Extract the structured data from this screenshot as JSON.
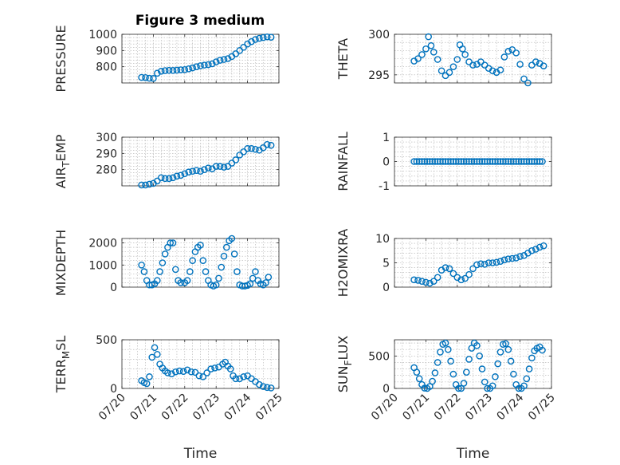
{
  "figure_title": "Figure 3 medium",
  "colors": {
    "marker": "#0072BD",
    "axes": "#262626",
    "grid": "#b0b0b0",
    "background": "#ffffff"
  },
  "x_axis": {
    "label": "Time",
    "range": [
      "07/20",
      "07/25"
    ],
    "tick_labels": [
      "07/20",
      "07/21",
      "07/22",
      "07/23",
      "07/24",
      "07/25"
    ]
  },
  "chart_data": [
    {
      "type": "scatter",
      "ylabel": "PRESSURE",
      "ylim": [
        700,
        1000
      ],
      "yticks": [
        800,
        900,
        1000
      ],
      "ytick_labels": [
        "800",
        "900",
        "1000"
      ],
      "grid": true,
      "marker": "open-circle",
      "points": [
        [
          "07/20 15:00",
          734
        ],
        [
          "07/20 18:00",
          733
        ],
        [
          "07/20 21:00",
          729
        ],
        [
          "07/21 00:00",
          728
        ],
        [
          "07/21 03:00",
          760
        ],
        [
          "07/21 06:00",
          772
        ],
        [
          "07/21 09:00",
          776
        ],
        [
          "07/21 12:00",
          778
        ],
        [
          "07/21 15:00",
          777
        ],
        [
          "07/21 18:00",
          779
        ],
        [
          "07/21 21:00",
          781
        ],
        [
          "07/22 00:00",
          782
        ],
        [
          "07/22 03:00",
          787
        ],
        [
          "07/22 06:00",
          793
        ],
        [
          "07/22 09:00",
          800
        ],
        [
          "07/22 12:00",
          806
        ],
        [
          "07/22 15:00",
          810
        ],
        [
          "07/22 18:00",
          813
        ],
        [
          "07/22 21:00",
          818
        ],
        [
          "07/23 00:00",
          830
        ],
        [
          "07/23 03:00",
          840
        ],
        [
          "07/23 06:00",
          845
        ],
        [
          "07/23 09:00",
          850
        ],
        [
          "07/23 12:00",
          863
        ],
        [
          "07/23 15:00",
          880
        ],
        [
          "07/23 18:00",
          900
        ],
        [
          "07/23 21:00",
          920
        ],
        [
          "07/24 00:00",
          940
        ],
        [
          "07/24 03:00",
          955
        ],
        [
          "07/24 06:00",
          968
        ],
        [
          "07/24 09:00",
          975
        ],
        [
          "07/24 12:00",
          980
        ],
        [
          "07/24 15:00",
          984
        ],
        [
          "07/24 18:00",
          982
        ]
      ]
    },
    {
      "type": "scatter",
      "ylabel": "THETA",
      "ylim": [
        294,
        300
      ],
      "yticks": [
        295,
        300
      ],
      "ytick_labels": [
        "295",
        "300"
      ],
      "grid": true,
      "marker": "open-circle",
      "points": [
        [
          "07/20 15:00",
          296.7
        ],
        [
          "07/20 18:00",
          297.0
        ],
        [
          "07/20 21:00",
          297.5
        ],
        [
          "07/21 00:00",
          298.2
        ],
        [
          "07/21 02:00",
          299.7
        ],
        [
          "07/21 04:00",
          298.6
        ],
        [
          "07/21 06:00",
          297.8
        ],
        [
          "07/21 09:00",
          296.9
        ],
        [
          "07/21 12:00",
          295.5
        ],
        [
          "07/21 15:00",
          294.9
        ],
        [
          "07/21 18:00",
          295.3
        ],
        [
          "07/21 21:00",
          296.0
        ],
        [
          "07/22 00:00",
          296.9
        ],
        [
          "07/22 02:00",
          298.7
        ],
        [
          "07/22 04:00",
          298.2
        ],
        [
          "07/22 06:00",
          297.5
        ],
        [
          "07/22 09:00",
          296.6
        ],
        [
          "07/22 12:00",
          296.2
        ],
        [
          "07/22 15:00",
          296.3
        ],
        [
          "07/22 18:00",
          296.6
        ],
        [
          "07/22 21:00",
          296.2
        ],
        [
          "07/23 00:00",
          295.8
        ],
        [
          "07/23 03:00",
          295.5
        ],
        [
          "07/23 06:00",
          295.3
        ],
        [
          "07/23 09:00",
          295.6
        ],
        [
          "07/23 12:00",
          297.2
        ],
        [
          "07/23 15:00",
          297.9
        ],
        [
          "07/23 18:00",
          298.1
        ],
        [
          "07/23 21:00",
          297.7
        ],
        [
          "07/24 00:00",
          296.3
        ],
        [
          "07/24 03:00",
          294.5
        ],
        [
          "07/24 06:00",
          294.0
        ],
        [
          "07/24 09:00",
          296.2
        ],
        [
          "07/24 12:00",
          296.6
        ],
        [
          "07/24 15:00",
          296.4
        ],
        [
          "07/24 18:00",
          296.1
        ]
      ]
    },
    {
      "type": "scatter",
      "ylabel": "AIR_TEMP",
      "ylim": [
        270,
        300
      ],
      "yticks": [
        280,
        290,
        300
      ],
      "ytick_labels": [
        "280",
        "290",
        "300"
      ],
      "grid": true,
      "marker": "open-circle",
      "points": [
        [
          "07/20 15:00",
          270.5
        ],
        [
          "07/20 18:00",
          270.5
        ],
        [
          "07/20 21:00",
          271
        ],
        [
          "07/21 00:00",
          271.5
        ],
        [
          "07/21 03:00",
          273
        ],
        [
          "07/21 06:00",
          275
        ],
        [
          "07/21 09:00",
          274.5
        ],
        [
          "07/21 12:00",
          274.5
        ],
        [
          "07/21 15:00",
          275
        ],
        [
          "07/21 18:00",
          276
        ],
        [
          "07/21 21:00",
          276.5
        ],
        [
          "07/22 00:00",
          277.5
        ],
        [
          "07/22 03:00",
          278.5
        ],
        [
          "07/22 06:00",
          279
        ],
        [
          "07/22 09:00",
          279.5
        ],
        [
          "07/22 12:00",
          279
        ],
        [
          "07/22 15:00",
          280
        ],
        [
          "07/22 18:00",
          281
        ],
        [
          "07/22 21:00",
          280.5
        ],
        [
          "07/23 00:00",
          282
        ],
        [
          "07/23 03:00",
          282
        ],
        [
          "07/23 06:00",
          281.5
        ],
        [
          "07/23 09:00",
          282
        ],
        [
          "07/23 12:00",
          284
        ],
        [
          "07/23 15:00",
          286
        ],
        [
          "07/23 18:00",
          289
        ],
        [
          "07/23 21:00",
          291
        ],
        [
          "07/24 00:00",
          293
        ],
        [
          "07/24 03:00",
          293
        ],
        [
          "07/24 06:00",
          292.5
        ],
        [
          "07/24 09:00",
          292
        ],
        [
          "07/24 12:00",
          293.5
        ],
        [
          "07/24 15:00",
          295.5
        ],
        [
          "07/24 18:00",
          295
        ]
      ]
    },
    {
      "type": "scatter",
      "ylabel": "RAINFALL",
      "ylim": [
        -1,
        1
      ],
      "yticks": [
        -1,
        0,
        1
      ],
      "ytick_labels": [
        "-1",
        "0",
        "1"
      ],
      "grid": true,
      "marker": "open-circle",
      "constant_series": {
        "start": "07/20 15:00",
        "end": "07/24 18:00",
        "step_hours": 2,
        "value": 0
      }
    },
    {
      "type": "scatter",
      "ylabel": "MIXDEPTH",
      "ylim": [
        0,
        2200
      ],
      "yticks": [
        0,
        1000,
        2000
      ],
      "ytick_labels": [
        "0",
        "1000",
        "2000"
      ],
      "grid": true,
      "marker": "open-circle",
      "points": [
        [
          "07/20 15:00",
          1000
        ],
        [
          "07/20 17:00",
          700
        ],
        [
          "07/20 19:00",
          300
        ],
        [
          "07/20 21:00",
          100
        ],
        [
          "07/20 23:00",
          100
        ],
        [
          "07/21 01:00",
          150
        ],
        [
          "07/21 03:00",
          300
        ],
        [
          "07/21 05:00",
          700
        ],
        [
          "07/21 07:00",
          1100
        ],
        [
          "07/21 09:00",
          1500
        ],
        [
          "07/21 11:00",
          1800
        ],
        [
          "07/21 13:00",
          2000
        ],
        [
          "07/21 15:00",
          2000
        ],
        [
          "07/21 17:00",
          800
        ],
        [
          "07/21 19:00",
          300
        ],
        [
          "07/21 21:00",
          200
        ],
        [
          "07/22 00:00",
          200
        ],
        [
          "07/22 02:00",
          300
        ],
        [
          "07/22 04:00",
          700
        ],
        [
          "07/22 06:00",
          1200
        ],
        [
          "07/22 08:00",
          1600
        ],
        [
          "07/22 10:00",
          1800
        ],
        [
          "07/22 12:00",
          1900
        ],
        [
          "07/22 14:00",
          1200
        ],
        [
          "07/22 16:00",
          700
        ],
        [
          "07/22 18:00",
          300
        ],
        [
          "07/22 20:00",
          100
        ],
        [
          "07/22 22:00",
          50
        ],
        [
          "07/23 00:00",
          100
        ],
        [
          "07/23 02:00",
          400
        ],
        [
          "07/23 04:00",
          900
        ],
        [
          "07/23 06:00",
          1400
        ],
        [
          "07/23 08:00",
          1800
        ],
        [
          "07/23 10:00",
          2100
        ],
        [
          "07/23 12:00",
          2200
        ],
        [
          "07/23 14:00",
          1500
        ],
        [
          "07/23 16:00",
          700
        ],
        [
          "07/23 18:00",
          100
        ],
        [
          "07/23 20:00",
          50
        ],
        [
          "07/23 22:00",
          50
        ],
        [
          "07/24 00:00",
          80
        ],
        [
          "07/24 02:00",
          150
        ],
        [
          "07/24 04:00",
          400
        ],
        [
          "07/24 06:00",
          700
        ],
        [
          "07/24 08:00",
          300
        ],
        [
          "07/24 10:00",
          150
        ],
        [
          "07/24 12:00",
          100
        ],
        [
          "07/24 14:00",
          200
        ],
        [
          "07/24 16:00",
          450
        ]
      ]
    },
    {
      "type": "scatter",
      "ylabel": "H2OMIXRA",
      "ylim": [
        0,
        10
      ],
      "yticks": [
        0,
        5,
        10
      ],
      "ytick_labels": [
        "0",
        "5",
        "10"
      ],
      "grid": true,
      "marker": "open-circle",
      "points": [
        [
          "07/20 15:00",
          1.5
        ],
        [
          "07/20 18:00",
          1.4
        ],
        [
          "07/20 21:00",
          1.2
        ],
        [
          "07/21 00:00",
          1.0
        ],
        [
          "07/21 03:00",
          0.8
        ],
        [
          "07/21 06:00",
          1.2
        ],
        [
          "07/21 09:00",
          2.0
        ],
        [
          "07/21 12:00",
          3.5
        ],
        [
          "07/21 15:00",
          4.0
        ],
        [
          "07/21 18:00",
          3.8
        ],
        [
          "07/21 21:00",
          2.8
        ],
        [
          "07/22 00:00",
          2.0
        ],
        [
          "07/22 03:00",
          1.5
        ],
        [
          "07/22 06:00",
          1.8
        ],
        [
          "07/22 09:00",
          2.6
        ],
        [
          "07/22 12:00",
          3.8
        ],
        [
          "07/22 15:00",
          4.6
        ],
        [
          "07/22 18:00",
          4.8
        ],
        [
          "07/22 21:00",
          4.7
        ],
        [
          "07/23 00:00",
          5.0
        ],
        [
          "07/23 03:00",
          5.0
        ],
        [
          "07/23 06:00",
          5.1
        ],
        [
          "07/23 09:00",
          5.3
        ],
        [
          "07/23 12:00",
          5.6
        ],
        [
          "07/23 15:00",
          5.8
        ],
        [
          "07/23 18:00",
          5.9
        ],
        [
          "07/23 21:00",
          6.0
        ],
        [
          "07/24 00:00",
          6.3
        ],
        [
          "07/24 03:00",
          6.5
        ],
        [
          "07/24 06:00",
          7.0
        ],
        [
          "07/24 09:00",
          7.5
        ],
        [
          "07/24 12:00",
          7.8
        ],
        [
          "07/24 15:00",
          8.2
        ],
        [
          "07/24 18:00",
          8.5
        ]
      ]
    },
    {
      "type": "scatter",
      "ylabel": "TERR_MSL",
      "ylim": [
        0,
        500
      ],
      "yticks": [
        0,
        500
      ],
      "ytick_labels": [
        "0",
        "500"
      ],
      "grid": true,
      "marker": "open-circle",
      "points": [
        [
          "07/20 15:00",
          80
        ],
        [
          "07/20 17:00",
          60
        ],
        [
          "07/20 19:00",
          50
        ],
        [
          "07/20 21:00",
          120
        ],
        [
          "07/20 23:00",
          320
        ],
        [
          "07/21 01:00",
          420
        ],
        [
          "07/21 03:00",
          350
        ],
        [
          "07/21 05:00",
          250
        ],
        [
          "07/21 07:00",
          210
        ],
        [
          "07/21 09:00",
          180
        ],
        [
          "07/21 11:00",
          160
        ],
        [
          "07/21 14:00",
          150
        ],
        [
          "07/21 17:00",
          170
        ],
        [
          "07/21 20:00",
          180
        ],
        [
          "07/21 23:00",
          175
        ],
        [
          "07/22 02:00",
          190
        ],
        [
          "07/22 05:00",
          170
        ],
        [
          "07/22 08:00",
          165
        ],
        [
          "07/22 11:00",
          130
        ],
        [
          "07/22 14:00",
          120
        ],
        [
          "07/22 17:00",
          160
        ],
        [
          "07/22 20:00",
          200
        ],
        [
          "07/22 23:00",
          210
        ],
        [
          "07/23 02:00",
          220
        ],
        [
          "07/23 05:00",
          250
        ],
        [
          "07/23 07:00",
          270
        ],
        [
          "07/23 09:00",
          230
        ],
        [
          "07/23 11:00",
          200
        ],
        [
          "07/23 13:00",
          130
        ],
        [
          "07/23 15:00",
          100
        ],
        [
          "07/23 18:00",
          100
        ],
        [
          "07/23 21:00",
          120
        ],
        [
          "07/24 00:00",
          130
        ],
        [
          "07/24 03:00",
          100
        ],
        [
          "07/24 06:00",
          70
        ],
        [
          "07/24 09:00",
          40
        ],
        [
          "07/24 12:00",
          20
        ],
        [
          "07/24 15:00",
          10
        ],
        [
          "07/24 18:00",
          5
        ]
      ]
    },
    {
      "type": "scatter",
      "ylabel": "SUN_FLUX",
      "ylim": [
        0,
        750
      ],
      "yticks": [
        0,
        500
      ],
      "ytick_labels": [
        "0",
        "500"
      ],
      "grid": true,
      "marker": "open-circle",
      "points": [
        [
          "07/20 15:00",
          320
        ],
        [
          "07/20 17:00",
          250
        ],
        [
          "07/20 19:00",
          150
        ],
        [
          "07/20 21:00",
          60
        ],
        [
          "07/20 23:00",
          5
        ],
        [
          "07/21 01:00",
          0
        ],
        [
          "07/21 03:00",
          30
        ],
        [
          "07/21 05:00",
          110
        ],
        [
          "07/21 07:00",
          240
        ],
        [
          "07/21 09:00",
          400
        ],
        [
          "07/21 11:00",
          560
        ],
        [
          "07/21 13:00",
          680
        ],
        [
          "07/21 15:00",
          700
        ],
        [
          "07/21 17:00",
          600
        ],
        [
          "07/21 19:00",
          420
        ],
        [
          "07/21 21:00",
          220
        ],
        [
          "07/21 23:00",
          60
        ],
        [
          "07/22 01:00",
          0
        ],
        [
          "07/22 03:00",
          0
        ],
        [
          "07/22 05:00",
          80
        ],
        [
          "07/22 07:00",
          250
        ],
        [
          "07/22 09:00",
          450
        ],
        [
          "07/22 11:00",
          620
        ],
        [
          "07/22 13:00",
          700
        ],
        [
          "07/22 15:00",
          660
        ],
        [
          "07/22 17:00",
          500
        ],
        [
          "07/22 19:00",
          300
        ],
        [
          "07/22 21:00",
          100
        ],
        [
          "07/22 23:00",
          0
        ],
        [
          "07/23 01:00",
          0
        ],
        [
          "07/23 03:00",
          40
        ],
        [
          "07/23 05:00",
          180
        ],
        [
          "07/23 07:00",
          380
        ],
        [
          "07/23 09:00",
          560
        ],
        [
          "07/23 11:00",
          680
        ],
        [
          "07/23 13:00",
          690
        ],
        [
          "07/23 15:00",
          600
        ],
        [
          "07/23 17:00",
          420
        ],
        [
          "07/23 19:00",
          220
        ],
        [
          "07/23 21:00",
          60
        ],
        [
          "07/23 23:00",
          0
        ],
        [
          "07/24 01:00",
          0
        ],
        [
          "07/24 03:00",
          40
        ],
        [
          "07/24 05:00",
          150
        ],
        [
          "07/24 07:00",
          300
        ],
        [
          "07/24 09:00",
          470
        ],
        [
          "07/24 11:00",
          580
        ],
        [
          "07/24 13:00",
          620
        ],
        [
          "07/24 15:00",
          640
        ],
        [
          "07/24 17:00",
          590
        ]
      ]
    }
  ]
}
